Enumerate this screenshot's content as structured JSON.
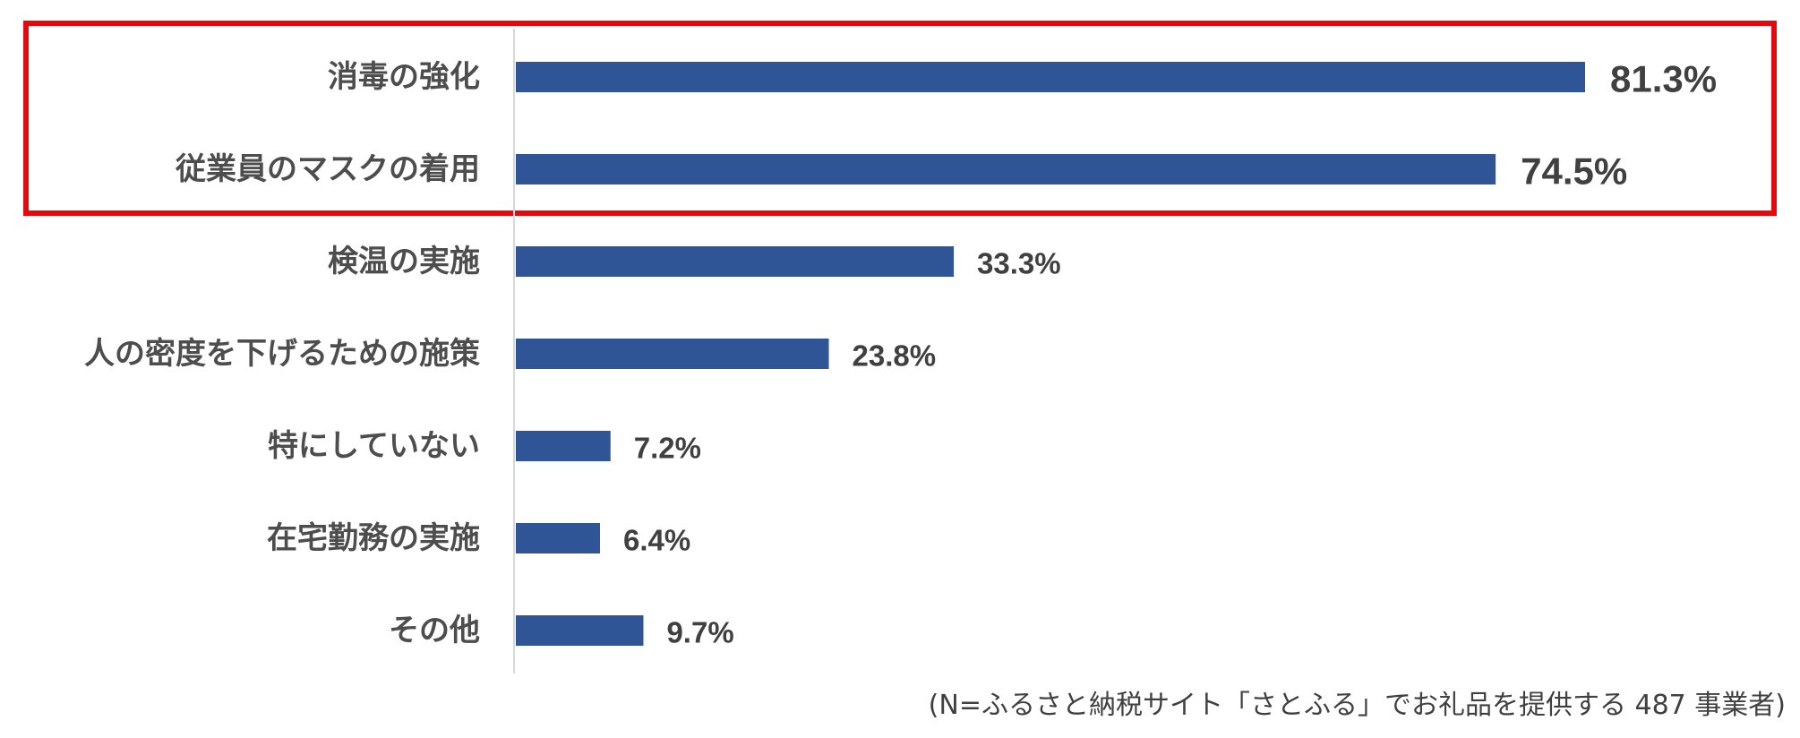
{
  "chart_data": {
    "type": "bar",
    "orientation": "horizontal",
    "categories": [
      "消毒の強化",
      "従業員のマスクの着用",
      "検温の実施",
      "人の密度を下げるための施策",
      "特にしていない",
      "在宅勤務の実施",
      "その他"
    ],
    "values": [
      81.3,
      74.5,
      33.3,
      23.8,
      7.2,
      6.4,
      9.7
    ],
    "value_labels": [
      "81.3%",
      "74.5%",
      "33.3%",
      "23.8%",
      "7.2%",
      "6.4%",
      "9.7%"
    ],
    "unit": "%",
    "highlighted_categories": [
      "消毒の強化",
      "従業員のマスクの着用"
    ],
    "grid": false,
    "legend": "none",
    "note": "(N=ふるさと納税サイト「さとふる」でお礼品を提供する 487 事業者)"
  },
  "colors": {
    "bar": "#2f5597",
    "highlight_box": "#e3090d",
    "axis": "#d9d9d9",
    "label_text": "#4d4d4d",
    "value_text": "#404040"
  }
}
